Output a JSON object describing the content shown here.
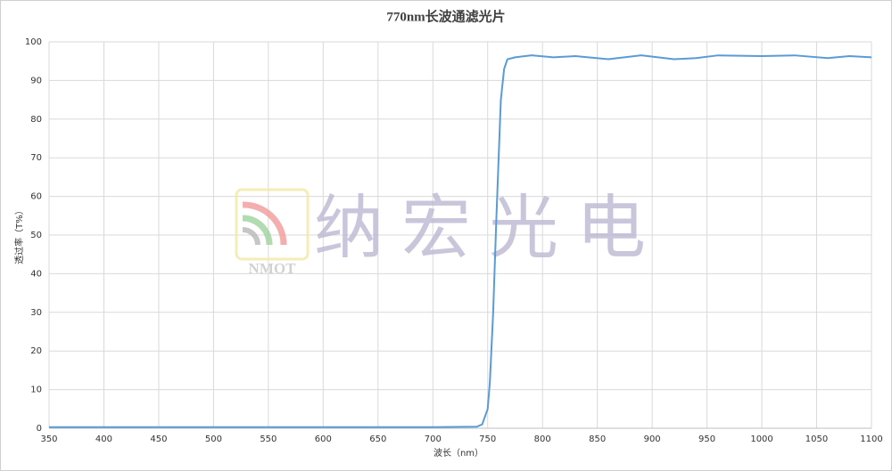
{
  "chart_data": {
    "type": "line",
    "title": "770nm长波通滤光片",
    "x_label": "波长（nm）",
    "y_label": "透过率（T%）",
    "watermark": {
      "logo_text": "NMOT",
      "text": "纳宏光电"
    },
    "series": [
      {
        "name": "770nm长波通滤光片",
        "color": "#5b9bd5",
        "x": [
          350,
          400,
          500,
          600,
          700,
          740,
          745,
          750,
          752,
          755,
          758,
          760,
          762,
          765,
          768,
          775,
          790,
          810,
          830,
          860,
          890,
          920,
          940,
          960,
          1000,
          1030,
          1060,
          1080,
          1100
        ],
        "values": [
          0.3,
          0.3,
          0.3,
          0.3,
          0.3,
          0.4,
          1,
          5,
          12,
          30,
          55,
          70,
          85,
          93,
          95.5,
          96,
          96.5,
          96,
          96.3,
          95.5,
          96.5,
          95.5,
          95.8,
          96.5,
          96.3,
          96.5,
          95.8,
          96.3,
          96
        ]
      }
    ],
    "xlim": [
      350,
      1100
    ],
    "xticks": [
      350,
      400,
      450,
      500,
      550,
      600,
      650,
      700,
      750,
      800,
      850,
      900,
      950,
      1000,
      1050,
      1100
    ],
    "ylim": [
      0,
      100
    ],
    "yticks": [
      0,
      10,
      20,
      30,
      40,
      50,
      60,
      70,
      80,
      90,
      100
    ],
    "grid": true
  }
}
